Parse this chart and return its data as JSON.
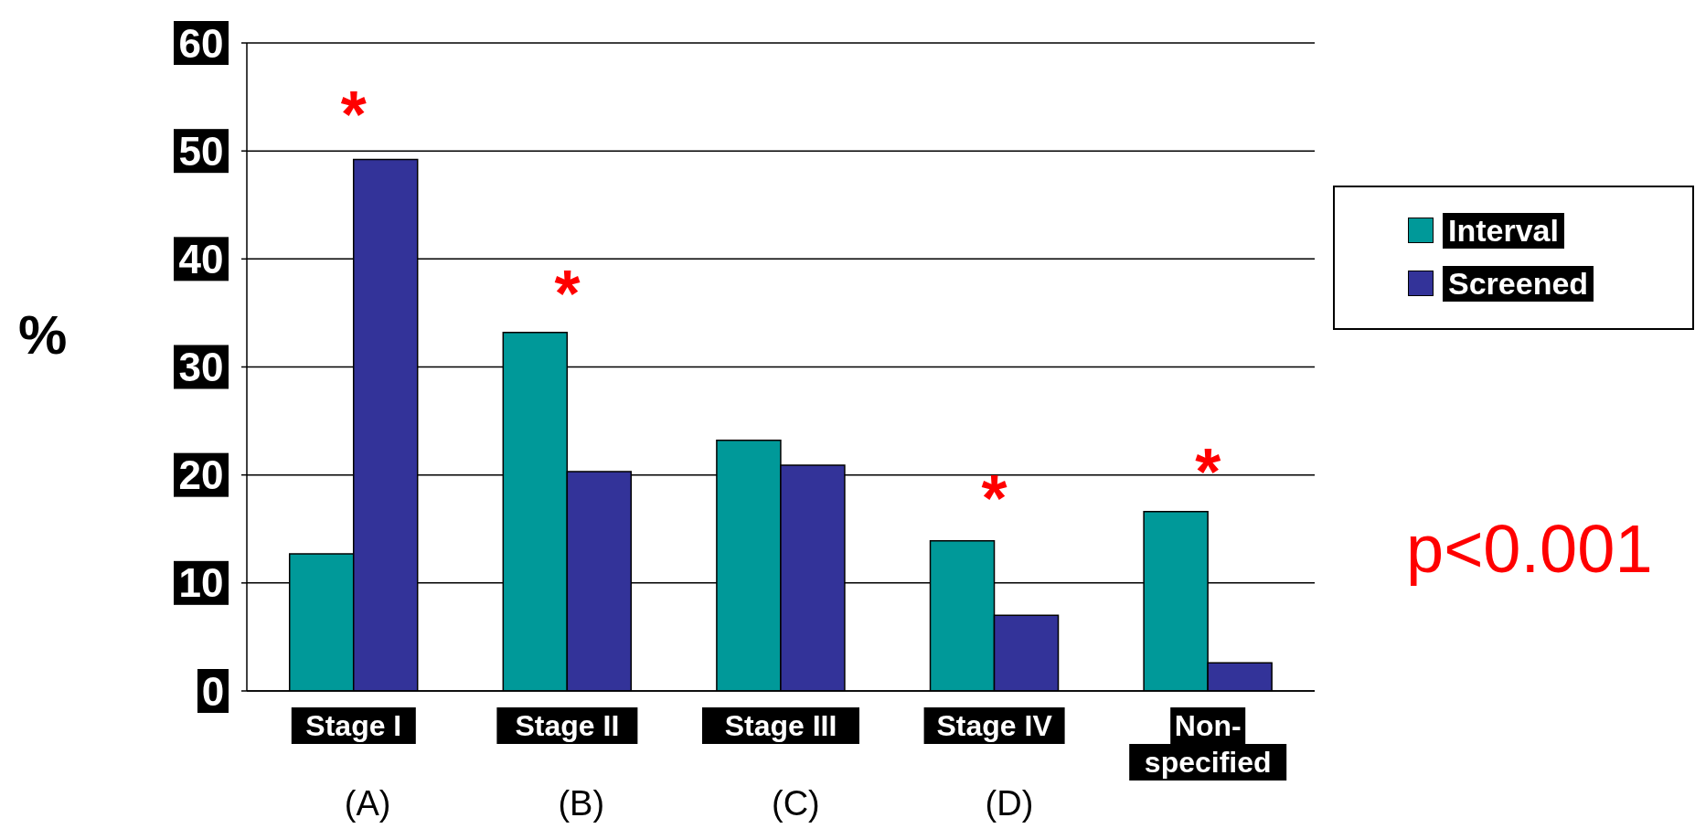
{
  "chart_data": {
    "type": "bar",
    "ylabel": "%",
    "categories": [
      "Stage I",
      "Stage II",
      "Stage III",
      "Stage IV",
      "Non-specified"
    ],
    "series": [
      {
        "name": "Interval",
        "color": "#009999",
        "values": [
          12.7,
          33.2,
          23.2,
          13.9,
          16.6
        ]
      },
      {
        "name": "Screened",
        "color": "#333399",
        "values": [
          49.2,
          20.3,
          20.9,
          7.0,
          2.6
        ]
      }
    ],
    "ylim": [
      0,
      60
    ],
    "yticks": [
      0,
      10,
      20,
      30,
      40,
      50,
      60
    ],
    "grid": "y",
    "legend": "right",
    "annotations": [
      "*",
      "*",
      "*",
      "*",
      "(A)",
      "(B)",
      "(C)",
      "(D)",
      "p<0.001"
    ]
  }
}
